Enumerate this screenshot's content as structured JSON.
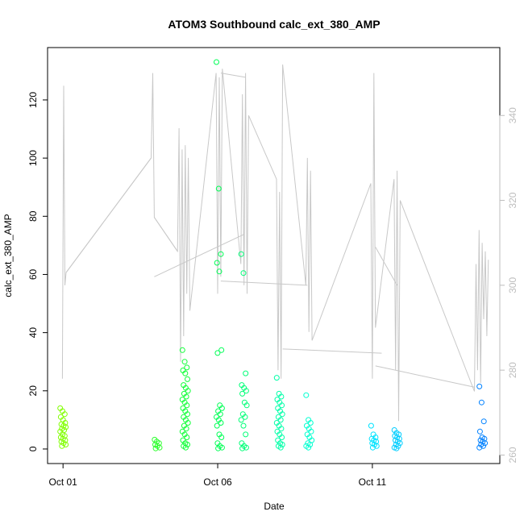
{
  "chart_data": {
    "type": "scatter",
    "title": "ATOM3 Southbound calc_ext_380_AMP",
    "xlabel": "Date",
    "ylabel": "calc_ext_380_AMP",
    "x_ticks": [
      {
        "day": 1,
        "label": "Oct 01"
      },
      {
        "day": 6,
        "label": "Oct 06"
      },
      {
        "day": 11,
        "label": "Oct 11"
      }
    ],
    "xlim": [
      0.5,
      15.12
    ],
    "ylim": [
      -5,
      138
    ],
    "y_ticks": [
      0,
      20,
      40,
      60,
      80,
      100,
      120
    ],
    "y2lim": [
      258,
      356
    ],
    "y2_ticks": [
      260,
      280,
      300,
      320,
      340
    ],
    "y2_color": "#bdbdbd",
    "color_gradient": [
      "#80ff00",
      "#00ff40",
      "#00ffff",
      "#0080ff"
    ],
    "scatter_clusters": [
      {
        "day": 1.0,
        "values": [
          14,
          13,
          12,
          11,
          10,
          9,
          8.5,
          8,
          7.5,
          7,
          6.5,
          6,
          5,
          4.5,
          4,
          3.5,
          3,
          2.5,
          2,
          1.5,
          1
        ]
      },
      {
        "day": 4.05,
        "values": [
          3.2,
          2.5,
          2,
          1.5,
          1,
          0.5,
          0.2
        ]
      },
      {
        "day": 4.95,
        "values": [
          34,
          30,
          28,
          27,
          26,
          24,
          22,
          21,
          20,
          19,
          18,
          17,
          16,
          15,
          14,
          13,
          12,
          11,
          10,
          9,
          8,
          7,
          6,
          5,
          4,
          3,
          2,
          1.5,
          1,
          0.5
        ]
      },
      {
        "day": 6.05,
        "values": [
          133,
          89.5,
          67,
          64,
          61,
          34,
          33,
          15,
          14,
          13,
          12,
          11,
          10,
          9,
          8,
          5,
          4,
          2,
          1,
          0.5,
          0.2
        ]
      },
      {
        "day": 6.85,
        "values": [
          67,
          60.5,
          26,
          22,
          21,
          20,
          19,
          16,
          15,
          12,
          11,
          10,
          8,
          5,
          2,
          1,
          0.5,
          0.2
        ]
      },
      {
        "day": 8.0,
        "values": [
          24.5,
          19,
          18,
          17,
          16,
          15,
          14,
          13,
          12,
          11,
          10,
          9,
          8,
          7,
          6,
          5,
          4,
          3,
          2,
          1.5,
          1,
          0.5
        ]
      },
      {
        "day": 8.95,
        "values": [
          18.5,
          10,
          9,
          8,
          7,
          6,
          5,
          4,
          3,
          2,
          1.5,
          1,
          0.5
        ]
      },
      {
        "day": 11.05,
        "values": [
          8,
          5,
          4,
          3.5,
          3,
          2.5,
          2,
          1.5,
          1,
          0.5
        ]
      },
      {
        "day": 11.8,
        "values": [
          6.5,
          5.5,
          5,
          4.5,
          4,
          3.5,
          3,
          2.5,
          2,
          1.5,
          1,
          0.5,
          0.2
        ]
      },
      {
        "day": 14.55,
        "values": [
          21.5,
          16,
          9.5,
          6,
          4,
          3.5,
          3,
          2.5,
          2,
          1.5,
          1,
          0.5
        ]
      }
    ],
    "line_series": {
      "color": "#c8c8c8",
      "points": [
        [
          0.98,
          278
        ],
        [
          1.02,
          347
        ],
        [
          1.06,
          300
        ],
        [
          1.1,
          303
        ],
        [
          3.85,
          330
        ],
        [
          3.9,
          350
        ],
        [
          3.95,
          316
        ],
        [
          4.7,
          308
        ],
        [
          4.75,
          337
        ],
        [
          4.8,
          282
        ],
        [
          4.85,
          332
        ],
        [
          4.9,
          288
        ],
        [
          4.95,
          333
        ],
        [
          5.0,
          298
        ],
        [
          5.05,
          330
        ],
        [
          5.1,
          294
        ],
        [
          5.95,
          350
        ],
        [
          6.0,
          298
        ],
        [
          6.05,
          349
        ],
        [
          6.1,
          302
        ],
        [
          6.15,
          351
        ],
        [
          6.75,
          305
        ],
        [
          6.8,
          345
        ],
        [
          6.85,
          300
        ],
        [
          6.9,
          350
        ],
        [
          6.95,
          298
        ],
        [
          7.0,
          340
        ],
        [
          7.9,
          325
        ],
        [
          7.95,
          280
        ],
        [
          8.0,
          322
        ],
        [
          8.05,
          278
        ],
        [
          8.1,
          352
        ],
        [
          8.85,
          300
        ],
        [
          8.9,
          330
        ],
        [
          8.95,
          289
        ],
        [
          9.0,
          327
        ],
        [
          9.05,
          287
        ],
        [
          10.95,
          324
        ],
        [
          11.0,
          278
        ],
        [
          11.05,
          350
        ],
        [
          11.1,
          290
        ],
        [
          11.7,
          325
        ],
        [
          11.75,
          280
        ],
        [
          11.8,
          327
        ],
        [
          11.85,
          268
        ],
        [
          11.9,
          320
        ],
        [
          14.3,
          275
        ],
        [
          14.35,
          305
        ],
        [
          14.4,
          280
        ],
        [
          14.45,
          313
        ],
        [
          14.5,
          277
        ],
        [
          14.55,
          310
        ],
        [
          14.6,
          292
        ],
        [
          14.65,
          308
        ],
        [
          14.7,
          288
        ],
        [
          14.75,
          306
        ]
      ],
      "connectors": [
        [
          [
            1.1,
            303
          ],
          [
            3.85,
            330
          ]
        ],
        [
          [
            3.95,
            316
          ],
          [
            4.7,
            308
          ]
        ],
        [
          [
            3.95,
            302
          ],
          [
            6.85,
            312
          ]
        ],
        [
          [
            6.1,
            301
          ],
          [
            8.9,
            300
          ]
        ],
        [
          [
            6.1,
            350
          ],
          [
            6.9,
            349
          ]
        ],
        [
          [
            8.1,
            285
          ],
          [
            11.3,
            284
          ]
        ],
        [
          [
            11.1,
            309
          ],
          [
            11.8,
            300
          ]
        ],
        [
          [
            11.1,
            281
          ],
          [
            14.3,
            276
          ]
        ]
      ]
    }
  }
}
